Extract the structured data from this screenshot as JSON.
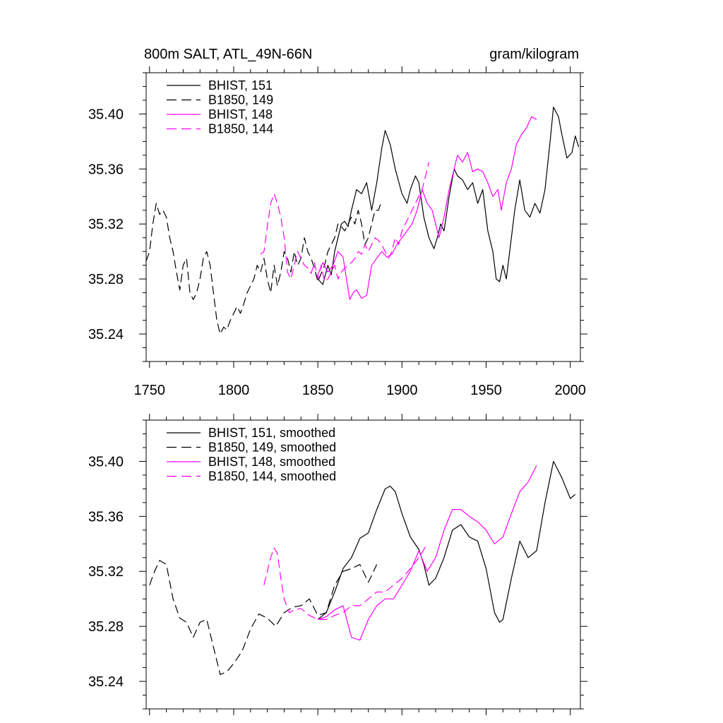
{
  "chart_data": [
    {
      "type": "line",
      "title_left": "800m SALT, ATL_49N-66N",
      "title_right": "gram/kilogram",
      "xlim": [
        1748,
        2006
      ],
      "ylim": [
        35.22,
        35.43
      ],
      "x_ticks": [
        1750,
        1800,
        1850,
        1900,
        1950,
        2000
      ],
      "x_tick_labels": [
        "1750",
        "1800",
        "1850",
        "1900",
        "1950",
        "2000"
      ],
      "y_ticks": [
        35.24,
        35.28,
        35.32,
        35.36,
        35.4
      ],
      "y_tick_labels": [
        "35.24",
        "35.28",
        "35.32",
        "35.36",
        "35.40"
      ],
      "series": [
        {
          "name": "BHIST, 151",
          "color": "#000000",
          "dash": "solid",
          "x": [
            1850,
            1853,
            1856,
            1858,
            1860,
            1862,
            1864,
            1866,
            1868,
            1870,
            1873,
            1876,
            1879,
            1882,
            1885,
            1888,
            1890,
            1893,
            1896,
            1900,
            1903,
            1905,
            1908,
            1910,
            1913,
            1916,
            1919,
            1921,
            1923,
            1925,
            1928,
            1931,
            1933,
            1936,
            1939,
            1942,
            1945,
            1948,
            1951,
            1954,
            1956,
            1958,
            1960,
            1962,
            1964,
            1967,
            1970,
            1973,
            1976,
            1979,
            1982,
            1985,
            1988,
            1990,
            1993,
            1995,
            1998,
            2001,
            2003,
            2005
          ],
          "y": [
            35.28,
            35.276,
            35.29,
            35.283,
            35.3,
            35.31,
            35.32,
            35.322,
            35.318,
            35.33,
            35.345,
            35.342,
            35.35,
            35.33,
            35.35,
            35.375,
            35.388,
            35.378,
            35.36,
            35.342,
            35.335,
            35.345,
            35.355,
            35.35,
            35.325,
            35.31,
            35.302,
            35.31,
            35.32,
            35.315,
            35.34,
            35.36,
            35.355,
            35.352,
            35.345,
            35.35,
            35.335,
            35.345,
            35.315,
            35.3,
            35.28,
            35.278,
            35.29,
            35.28,
            35.3,
            35.33,
            35.352,
            35.33,
            35.325,
            35.335,
            35.328,
            35.345,
            35.38,
            35.405,
            35.398,
            35.385,
            35.368,
            35.372,
            35.384,
            35.376
          ]
        },
        {
          "name": "B1850, 149",
          "color": "#000000",
          "dash": "dashed",
          "x": [
            1748,
            1750,
            1752,
            1754,
            1756,
            1758,
            1760,
            1762,
            1764,
            1766,
            1768,
            1770,
            1772,
            1774,
            1776,
            1778,
            1780,
            1782,
            1784,
            1786,
            1788,
            1790,
            1792,
            1794,
            1796,
            1798,
            1800,
            1802,
            1804,
            1806,
            1808,
            1810,
            1812,
            1814,
            1816,
            1818,
            1820,
            1822,
            1824,
            1826,
            1828,
            1830,
            1832,
            1834,
            1836,
            1838,
            1840,
            1842,
            1844,
            1846,
            1848,
            1850,
            1852,
            1854,
            1856,
            1858,
            1860,
            1862,
            1864,
            1866,
            1868,
            1870,
            1872,
            1874,
            1876,
            1878,
            1880,
            1882,
            1884,
            1886,
            1888
          ],
          "y": [
            35.293,
            35.3,
            35.32,
            35.335,
            35.327,
            35.33,
            35.325,
            35.31,
            35.3,
            35.285,
            35.272,
            35.29,
            35.295,
            35.27,
            35.265,
            35.27,
            35.28,
            35.295,
            35.3,
            35.29,
            35.27,
            35.25,
            35.24,
            35.245,
            35.243,
            35.25,
            35.255,
            35.26,
            35.255,
            35.262,
            35.27,
            35.275,
            35.28,
            35.29,
            35.285,
            35.295,
            35.28,
            35.27,
            35.29,
            35.275,
            35.285,
            35.3,
            35.295,
            35.285,
            35.3,
            35.29,
            35.295,
            35.31,
            35.3,
            35.295,
            35.288,
            35.278,
            35.284,
            35.29,
            35.3,
            35.305,
            35.31,
            35.32,
            35.318,
            35.315,
            35.32,
            35.325,
            35.32,
            35.33,
            35.32,
            35.305,
            35.31,
            35.32,
            35.33,
            35.33,
            35.337
          ]
        },
        {
          "name": "BHIST, 148",
          "color": "#ff00ff",
          "dash": "solid",
          "x": [
            1850,
            1853,
            1856,
            1859,
            1862,
            1865,
            1867,
            1869,
            1871,
            1873,
            1876,
            1879,
            1882,
            1885,
            1888,
            1891,
            1894,
            1897,
            1900,
            1903,
            1906,
            1909,
            1912,
            1915,
            1918,
            1920,
            1922,
            1925,
            1928,
            1931,
            1933,
            1936,
            1939,
            1942,
            1945,
            1948,
            1951,
            1954,
            1957,
            1959,
            1962,
            1965,
            1968,
            1971,
            1974,
            1977,
            1980
          ],
          "y": [
            35.283,
            35.292,
            35.285,
            35.29,
            35.3,
            35.296,
            35.28,
            35.265,
            35.27,
            35.272,
            35.266,
            35.268,
            35.29,
            35.295,
            35.3,
            35.296,
            35.298,
            35.305,
            35.31,
            35.315,
            35.32,
            35.33,
            35.345,
            35.335,
            35.33,
            35.32,
            35.31,
            35.325,
            35.345,
            35.36,
            35.37,
            35.365,
            35.372,
            35.358,
            35.36,
            35.358,
            35.35,
            35.34,
            35.345,
            35.33,
            35.35,
            35.36,
            35.378,
            35.385,
            35.39,
            35.398,
            35.396
          ]
        },
        {
          "name": "B1850, 144",
          "color": "#ff00ff",
          "dash": "dashed",
          "x": [
            1816,
            1818,
            1820,
            1822,
            1824,
            1826,
            1828,
            1830,
            1832,
            1834,
            1836,
            1838,
            1840,
            1842,
            1844,
            1846,
            1848,
            1850,
            1852,
            1854,
            1856,
            1858,
            1860,
            1862,
            1864,
            1866,
            1868,
            1870,
            1872,
            1874,
            1876,
            1878,
            1880,
            1882,
            1884,
            1886,
            1888,
            1890,
            1892,
            1894,
            1896,
            1898,
            1900,
            1902,
            1904,
            1906,
            1908,
            1910,
            1912,
            1914,
            1916
          ],
          "y": [
            35.298,
            35.3,
            35.318,
            35.335,
            35.342,
            35.335,
            35.325,
            35.31,
            35.285,
            35.28,
            35.29,
            35.3,
            35.295,
            35.29,
            35.288,
            35.284,
            35.292,
            35.28,
            35.29,
            35.278,
            35.28,
            35.285,
            35.29,
            35.28,
            35.285,
            35.288,
            35.29,
            35.292,
            35.295,
            35.3,
            35.298,
            35.305,
            35.3,
            35.305,
            35.31,
            35.308,
            35.305,
            35.3,
            35.295,
            35.3,
            35.31,
            35.305,
            35.315,
            35.32,
            35.325,
            35.33,
            35.335,
            35.34,
            35.345,
            35.355,
            35.365
          ]
        }
      ],
      "legend": [
        "BHIST, 151",
        "B1850, 149",
        "BHIST, 148",
        "B1850, 144"
      ],
      "legend_position": "top-left"
    },
    {
      "type": "line",
      "title_left": "",
      "title_right": "",
      "xlim": [
        1748,
        2006
      ],
      "ylim": [
        35.22,
        35.43
      ],
      "x_ticks": [
        1750,
        1800,
        1850,
        1900,
        1950,
        2000
      ],
      "x_tick_labels": [],
      "y_ticks": [
        35.24,
        35.28,
        35.32,
        35.36,
        35.4
      ],
      "y_tick_labels": [
        "35.24",
        "35.28",
        "35.32",
        "35.36",
        "35.40"
      ],
      "series": [
        {
          "name": "BHIST, 151, smoothed",
          "color": "#000000",
          "dash": "solid",
          "x": [
            1850,
            1855,
            1860,
            1865,
            1870,
            1875,
            1880,
            1885,
            1890,
            1893,
            1896,
            1900,
            1905,
            1910,
            1913,
            1916,
            1920,
            1925,
            1930,
            1935,
            1940,
            1945,
            1950,
            1955,
            1958,
            1960,
            1965,
            1970,
            1975,
            1980,
            1985,
            1990,
            1995,
            2000,
            2003
          ],
          "y": [
            35.285,
            35.29,
            35.305,
            35.322,
            35.33,
            35.344,
            35.348,
            35.365,
            35.38,
            35.382,
            35.378,
            35.362,
            35.345,
            35.336,
            35.325,
            35.31,
            35.315,
            35.33,
            35.35,
            35.354,
            35.345,
            35.342,
            35.322,
            35.29,
            35.283,
            35.285,
            35.315,
            35.342,
            35.33,
            35.335,
            35.37,
            35.4,
            35.388,
            35.373,
            35.376
          ]
        },
        {
          "name": "B1850, 149, smoothed",
          "color": "#000000",
          "dash": "dashed",
          "x": [
            1750,
            1753,
            1756,
            1760,
            1764,
            1768,
            1772,
            1776,
            1780,
            1784,
            1788,
            1792,
            1796,
            1800,
            1805,
            1810,
            1815,
            1820,
            1825,
            1830,
            1835,
            1840,
            1845,
            1850,
            1855,
            1860,
            1865,
            1870,
            1875,
            1880,
            1885
          ],
          "y": [
            35.31,
            35.32,
            35.328,
            35.325,
            35.3,
            35.286,
            35.283,
            35.272,
            35.283,
            35.285,
            35.265,
            35.245,
            35.247,
            35.253,
            35.262,
            35.278,
            35.289,
            35.286,
            35.28,
            35.29,
            35.294,
            35.295,
            35.3,
            35.288,
            35.29,
            35.31,
            35.32,
            35.322,
            35.325,
            35.312,
            35.325
          ]
        },
        {
          "name": "BHIST, 148, smoothed",
          "color": "#ff00ff",
          "dash": "solid",
          "x": [
            1850,
            1855,
            1860,
            1865,
            1870,
            1875,
            1880,
            1885,
            1890,
            1895,
            1900,
            1905,
            1910,
            1915,
            1920,
            1925,
            1930,
            1935,
            1940,
            1945,
            1950,
            1955,
            1960,
            1965,
            1970,
            1975,
            1980
          ],
          "y": [
            35.285,
            35.287,
            35.292,
            35.295,
            35.272,
            35.27,
            35.285,
            35.295,
            35.3,
            35.3,
            35.31,
            35.32,
            35.335,
            35.32,
            35.33,
            35.35,
            35.365,
            35.365,
            35.36,
            35.356,
            35.35,
            35.34,
            35.345,
            35.362,
            35.378,
            35.385,
            35.397
          ]
        },
        {
          "name": "B1850, 144, smoothed",
          "color": "#ff00ff",
          "dash": "dashed",
          "x": [
            1818,
            1820,
            1822,
            1824,
            1826,
            1828,
            1830,
            1833,
            1836,
            1840,
            1845,
            1850,
            1855,
            1860,
            1865,
            1870,
            1875,
            1880,
            1885,
            1890,
            1895,
            1900,
            1905,
            1910,
            1915
          ],
          "y": [
            35.31,
            35.32,
            35.33,
            35.337,
            35.333,
            35.315,
            35.3,
            35.29,
            35.292,
            35.293,
            35.288,
            35.285,
            35.285,
            35.288,
            35.29,
            35.295,
            35.295,
            35.3,
            35.305,
            35.305,
            35.31,
            35.315,
            35.322,
            35.33,
            35.34
          ]
        }
      ],
      "legend": [
        "BHIST, 151, smoothed",
        "B1850, 149, smoothed",
        "BHIST, 148, smoothed",
        "B1850, 144, smoothed"
      ],
      "legend_position": "top-left"
    }
  ]
}
